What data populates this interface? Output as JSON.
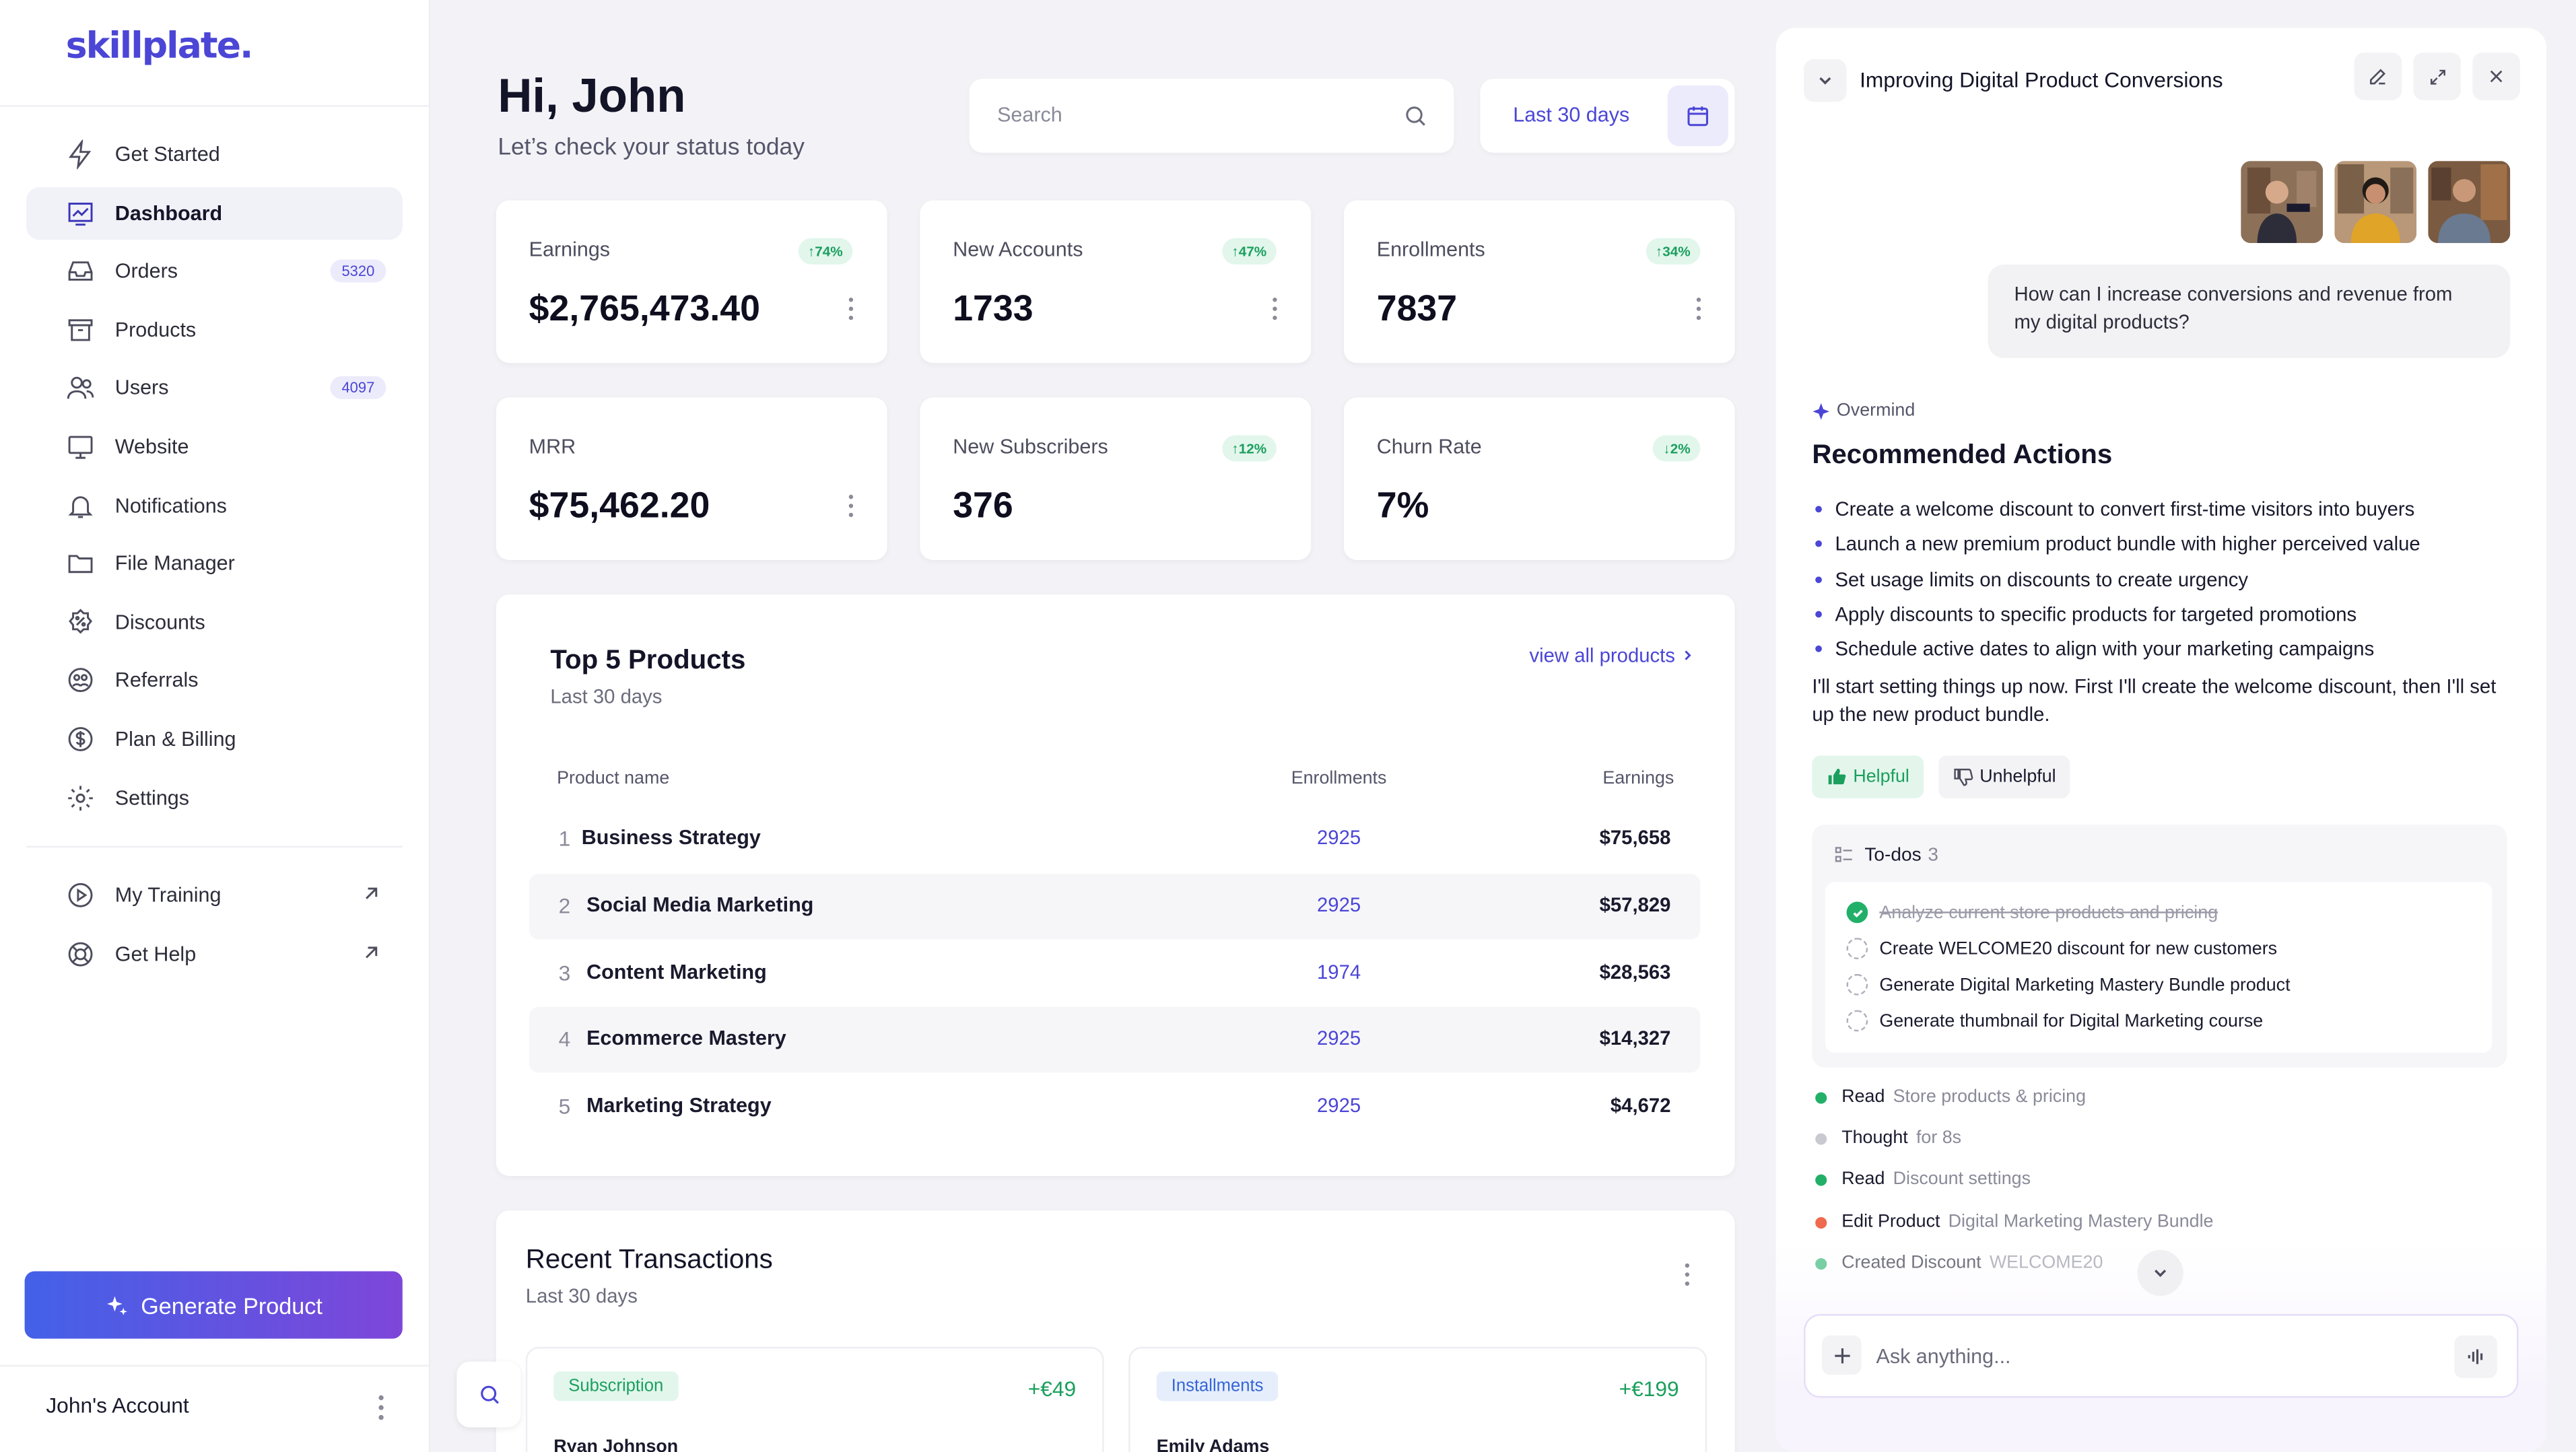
{
  "brand": {
    "logo": "skillplate."
  },
  "sidebar": {
    "items": [
      {
        "label": "Get Started",
        "icon": "bolt-icon"
      },
      {
        "label": "Dashboard",
        "icon": "chart-icon",
        "active": true
      },
      {
        "label": "Orders",
        "icon": "inbox-icon",
        "badge": "5320"
      },
      {
        "label": "Products",
        "icon": "archive-icon"
      },
      {
        "label": "Users",
        "icon": "users-icon",
        "badge": "4097"
      },
      {
        "label": "Website",
        "icon": "monitor-icon"
      },
      {
        "label": "Notifications",
        "icon": "bell-icon"
      },
      {
        "label": "File Manager",
        "icon": "folder-icon"
      },
      {
        "label": "Discounts",
        "icon": "discount-icon"
      },
      {
        "label": "Referrals",
        "icon": "referral-icon"
      },
      {
        "label": "Plan & Billing",
        "icon": "dollar-icon"
      },
      {
        "label": "Settings",
        "icon": "gear-icon"
      }
    ],
    "secondary": [
      {
        "label": "My Training",
        "icon": "play-icon"
      },
      {
        "label": "Get Help",
        "icon": "lifebuoy-icon"
      }
    ],
    "generate_label": "Generate Product",
    "account_label": "John's Account"
  },
  "header": {
    "greeting": "Hi, John",
    "subtitle": "Let’s check your status today",
    "search_placeholder": "Search",
    "date_range": "Last 30 days"
  },
  "stats": [
    {
      "label": "Earnings",
      "value": "$2,765,473.40",
      "change": "↑74%",
      "menu": true
    },
    {
      "label": "New Accounts",
      "value": "1733",
      "change": "↑47%",
      "menu": true
    },
    {
      "label": "Enrollments",
      "value": "7837",
      "change": "↑34%",
      "menu": true
    },
    {
      "label": "MRR",
      "value": "$75,462.20",
      "change": "",
      "menu": true
    },
    {
      "label": "New Subscribers",
      "value": "376",
      "change": "↑12%",
      "menu": false
    },
    {
      "label": "Churn Rate",
      "value": "7%",
      "change": "↓2%",
      "menu": false
    }
  ],
  "top_products": {
    "title": "Top 5 Products",
    "subtitle": "Last 30 days",
    "view_all": "view all products",
    "columns": [
      "Product name",
      "Enrollments",
      "Earnings"
    ],
    "rows": [
      {
        "rank": "1",
        "name": "Business Strategy",
        "enrollments": "2925",
        "earnings": "$75,658"
      },
      {
        "rank": "2",
        "name": "Social Media Marketing",
        "enrollments": "2925",
        "earnings": "$57,829"
      },
      {
        "rank": "3",
        "name": "Content Marketing",
        "enrollments": "1974",
        "earnings": "$28,563"
      },
      {
        "rank": "4",
        "name": "Ecommerce Mastery",
        "enrollments": "2925",
        "earnings": "$14,327"
      },
      {
        "rank": "5",
        "name": "Marketing Strategy",
        "enrollments": "2925",
        "earnings": "$4,672"
      }
    ]
  },
  "recent_transactions": {
    "title": "Recent Transactions",
    "subtitle": "Last 30 days",
    "items": [
      {
        "type": "Subscription",
        "amount": "+€49",
        "name": "Ryan Johnson",
        "color": "#1b9f5d",
        "bg": "#e2f6ec"
      },
      {
        "type": "Installments",
        "amount": "+€199",
        "name": "Emily Adams",
        "color": "#3566d6",
        "bg": "#e6eefc"
      }
    ]
  },
  "assistant": {
    "title": "Improving Digital Product Conversions",
    "question": "How can I increase conversions and revenue from my digital products?",
    "agent_name": "Overmind",
    "heading": "Recommended Actions",
    "actions": [
      "Create a welcome discount to convert first-time visitors into buyers",
      "Launch a new premium product bundle with higher perceived value",
      "Set usage limits on discounts to create urgency",
      "Apply discounts to specific products for targeted promotions",
      "Schedule active dates to align with your marketing campaigns"
    ],
    "followup": "I'll start setting things up now. First I'll create the welcome discount, then I'll set up the new product bundle.",
    "helpful_label": "Helpful",
    "unhelpful_label": "Unhelpful",
    "todos_label": "To-dos",
    "todos_count": "3",
    "todos": [
      {
        "text": "Analyze current store products and pricing",
        "done": true
      },
      {
        "text": "Create WELCOME20 discount for new customers",
        "done": false
      },
      {
        "text": "Generate Digital Marketing Mastery Bundle product",
        "done": false
      },
      {
        "text": "Generate thumbnail for Digital Marketing course",
        "done": false
      }
    ],
    "steps": [
      {
        "action": "Read",
        "detail": "Store products & pricing",
        "color": "#22b068"
      },
      {
        "action": "Thought",
        "detail": "for 8s",
        "color": "#c9c9d2"
      },
      {
        "action": "Read",
        "detail": "Discount settings",
        "color": "#22b068"
      },
      {
        "action": "Edit Product",
        "detail": "Digital Marketing Mastery Bundle",
        "color": "#ef6a4f"
      },
      {
        "action": "Created Discount",
        "detail": "WELCOME20",
        "color": "#22b068"
      }
    ],
    "input_placeholder": "Ask anything..."
  },
  "colors": {
    "accent": "#4b46d6",
    "positive": "#1b9f5d",
    "gradient_start": "#4361e8",
    "gradient_end": "#7e46d9"
  }
}
